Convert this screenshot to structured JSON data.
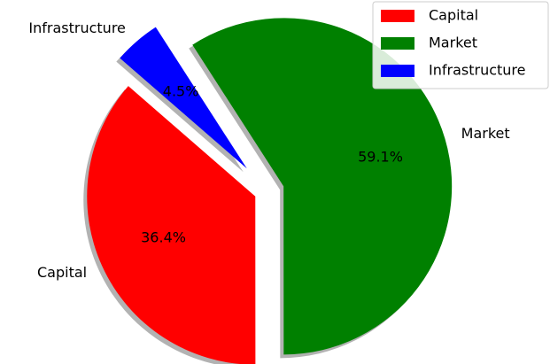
{
  "chart_data": {
    "type": "pie",
    "categories": [
      "Capital",
      "Market",
      "Infrastructure"
    ],
    "values": [
      36.4,
      59.1,
      4.5
    ],
    "value_labels": [
      "36.4%",
      "59.1%",
      "4.5%"
    ],
    "colors": [
      "#ff0000",
      "#008000",
      "#0000ff"
    ],
    "shadow": true,
    "legend": "upper right"
  }
}
